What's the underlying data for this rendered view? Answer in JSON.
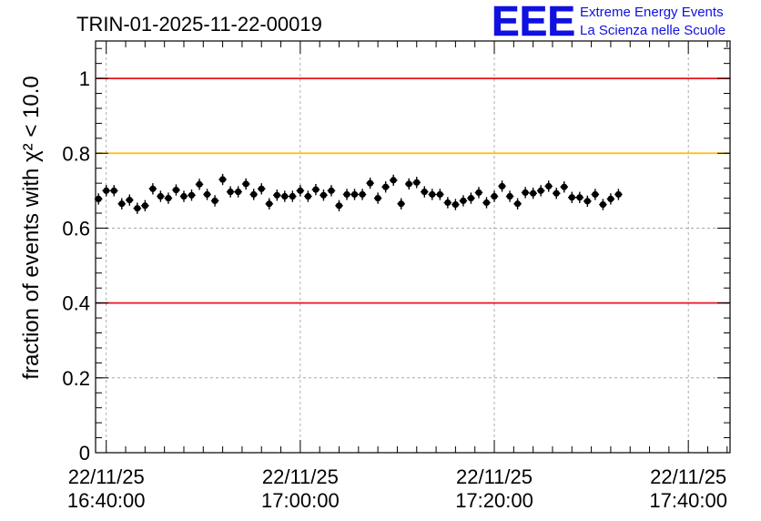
{
  "chart_data": {
    "type": "scatter",
    "title": "TRIN-01-2025-11-22-00019",
    "ylabel": "fraction of events with χ² < 10.0",
    "ylim": [
      0,
      1.1
    ],
    "yticks": [
      {
        "value": 0,
        "label": "0"
      },
      {
        "value": 0.2,
        "label": "0.2"
      },
      {
        "value": 0.4,
        "label": "0.4"
      },
      {
        "value": 0.6,
        "label": "0.6"
      },
      {
        "value": 0.8,
        "label": "0.8"
      },
      {
        "value": 1.0,
        "label": "1"
      }
    ],
    "xlim_minutes": [
      -1.1,
      64.3
    ],
    "xticks": [
      {
        "minute": 0,
        "date": "22/11/25",
        "time": "16:40:00"
      },
      {
        "minute": 20,
        "date": "22/11/25",
        "time": "17:00:00"
      },
      {
        "minute": 40,
        "date": "22/11/25",
        "time": "17:20:00"
      },
      {
        "minute": 60,
        "date": "22/11/25",
        "time": "17:40:00"
      }
    ],
    "grid": true,
    "reference_lines": [
      {
        "value": 1.0,
        "color": "#e8141c"
      },
      {
        "value": 0.8,
        "color": "#ffc000"
      },
      {
        "value": 0.4,
        "color": "#e8141c"
      }
    ],
    "marker_color": "#000000",
    "error": 0.015,
    "x_error_minutes": 0.4,
    "x_start_minute": -0.8,
    "x_step_minutes": 0.8,
    "values": [
      0.678,
      0.7,
      0.7,
      0.665,
      0.675,
      0.653,
      0.66,
      0.705,
      0.685,
      0.68,
      0.702,
      0.685,
      0.688,
      0.717,
      0.69,
      0.673,
      0.73,
      0.697,
      0.697,
      0.718,
      0.69,
      0.705,
      0.665,
      0.688,
      0.685,
      0.685,
      0.7,
      0.685,
      0.703,
      0.688,
      0.7,
      0.66,
      0.69,
      0.69,
      0.69,
      0.72,
      0.68,
      0.71,
      0.728,
      0.665,
      0.718,
      0.722,
      0.697,
      0.69,
      0.69,
      0.668,
      0.663,
      0.673,
      0.68,
      0.695,
      0.668,
      0.685,
      0.712,
      0.685,
      0.665,
      0.695,
      0.693,
      0.7,
      0.712,
      0.693,
      0.71,
      0.682,
      0.682,
      0.672,
      0.69,
      0.663,
      0.678,
      0.69
    ]
  },
  "logo": {
    "letters": "EEE",
    "line1": "Extreme Energy Events",
    "line2": "La Scienza nelle Scuole"
  }
}
